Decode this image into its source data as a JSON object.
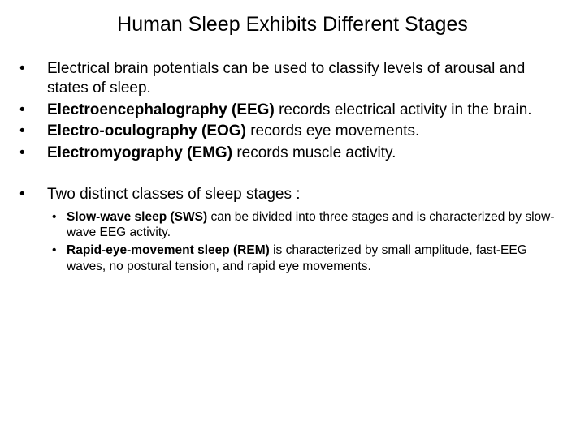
{
  "title": "Human Sleep Exhibits Different Stages",
  "bullets": {
    "b0": {
      "pre": "",
      "bold": "",
      "post": "Electrical brain potentials can be used to classify levels of arousal and states of sleep."
    },
    "b1": {
      "pre": "",
      "bold": "Electroencephalography (EEG)",
      "post": " records electrical activity in the brain."
    },
    "b2": {
      "pre": "",
      "bold": "Electro-oculography (EOG)",
      "post": " records eye movements."
    },
    "b3": {
      "pre": "",
      "bold": "Electromyography (EMG)",
      "post": " records muscle activity."
    },
    "b4": {
      "pre": "Two distinct classes of sleep stages :",
      "bold": "",
      "post": ""
    }
  },
  "subs": {
    "s0": {
      "bold": "Slow-wave sleep (SWS)",
      "post": " can be divided into three stages and is characterized by slow-wave EEG activity."
    },
    "s1": {
      "bold": "Rapid-eye-movement sleep (REM)",
      "post": " is characterized by small amplitude, fast-EEG waves, no postural tension, and rapid eye movements."
    }
  },
  "colors": {
    "background": "#ffffff",
    "text": "#000000"
  },
  "typography": {
    "title_fontsize": 25,
    "bullet_fontsize": 19,
    "sub_fontsize": 15.5,
    "font_family": "Arial"
  }
}
